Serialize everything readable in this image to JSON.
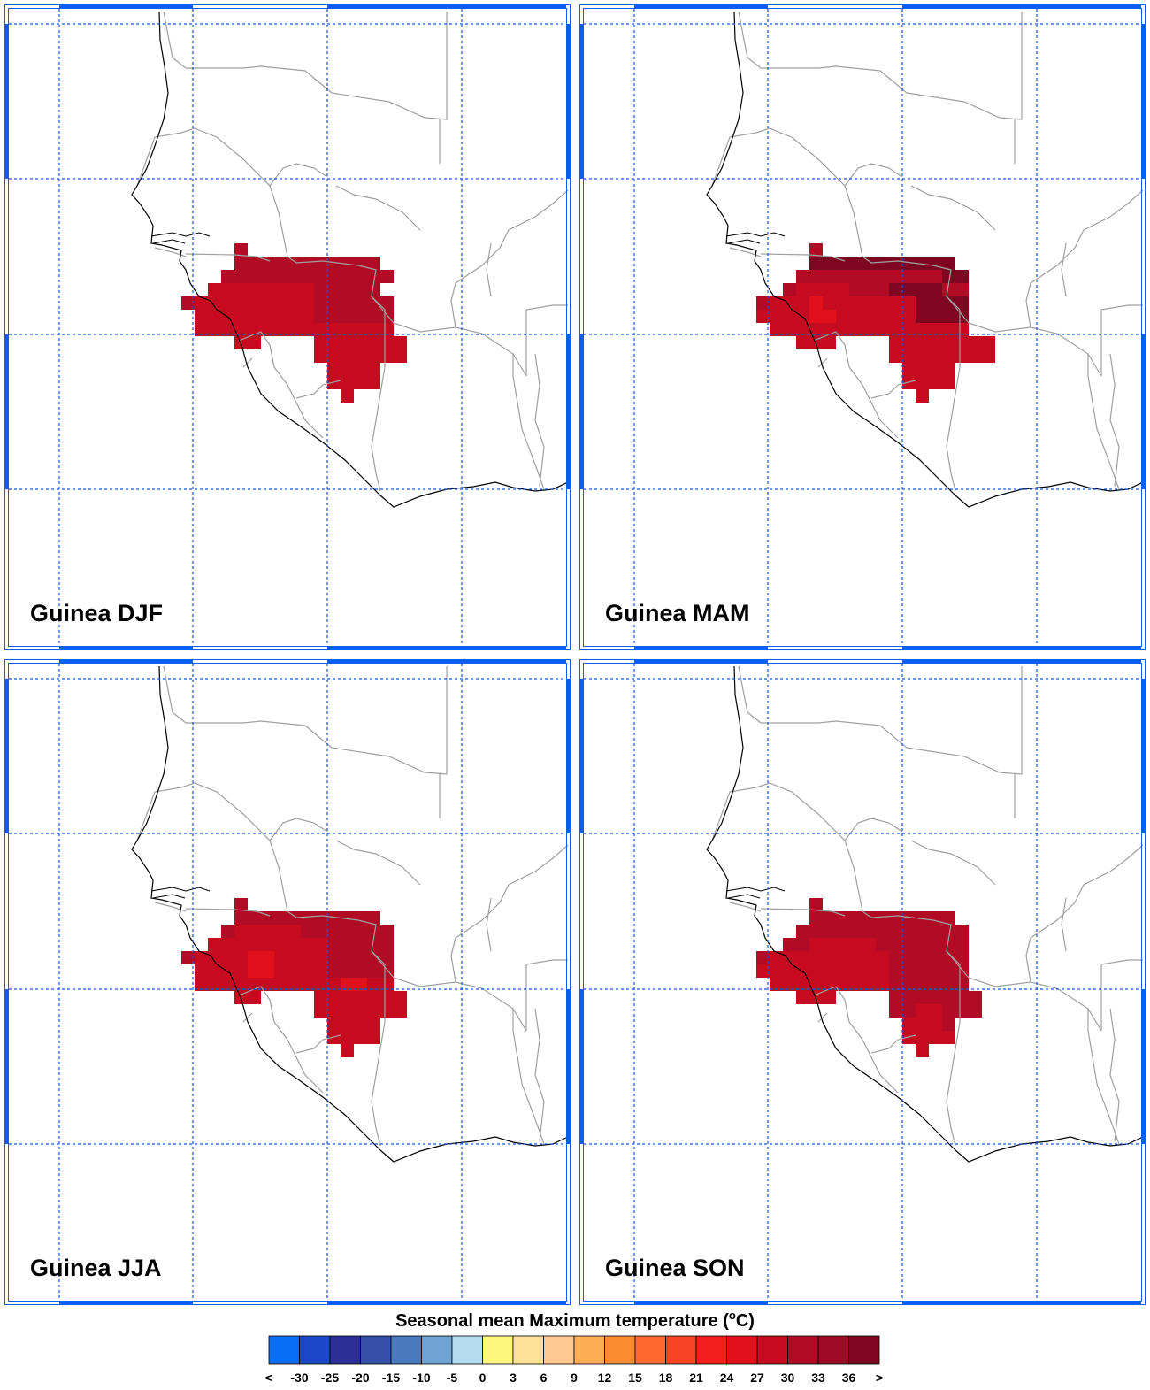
{
  "panels": [
    {
      "id": "djf",
      "label": "Guinea DJF"
    },
    {
      "id": "mam",
      "label": "Guinea MAM"
    },
    {
      "id": "jja",
      "label": "Guinea JJA"
    },
    {
      "id": "son",
      "label": "Guinea SON"
    }
  ],
  "colorbar": {
    "title_prefix": "Seasonal mean Maximum temperature (",
    "title_sup": "o",
    "title_suffix": "C)",
    "ticks": [
      "<",
      "-30",
      "-25",
      "-20",
      "-15",
      "-10",
      "-5",
      "0",
      "3",
      "6",
      "9",
      "12",
      "15",
      "18",
      "21",
      "24",
      "27",
      "30",
      "33",
      "36",
      ">"
    ],
    "colors": [
      "#0a6ef5",
      "#1a48c8",
      "#2b2f96",
      "#3650aa",
      "#4979bf",
      "#6ea3d2",
      "#b5dcee",
      "#fdf87d",
      "#fde29a",
      "#fdc892",
      "#fdad54",
      "#fd8c30",
      "#fd6930",
      "#f84424",
      "#f21d1d",
      "#e2101a",
      "#c60a20",
      "#b20b25",
      "#9e0926",
      "#7e0620"
    ]
  },
  "colors": {
    "grid": "#1454e6",
    "frame": "#0a5ff0",
    "coast": "#000000",
    "borders": "#a0a0a0"
  }
}
